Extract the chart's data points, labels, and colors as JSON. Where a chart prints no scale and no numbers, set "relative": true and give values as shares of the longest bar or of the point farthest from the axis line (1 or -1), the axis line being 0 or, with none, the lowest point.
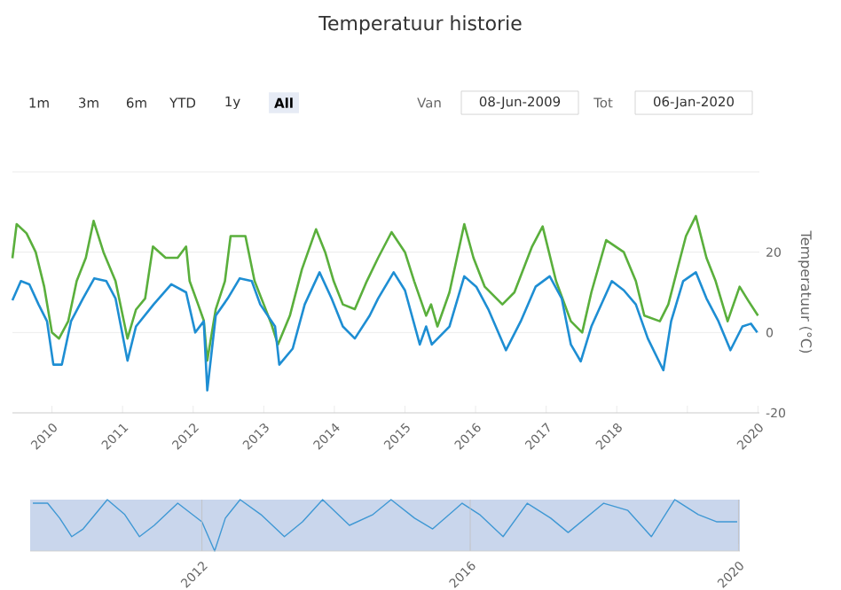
{
  "chart_data": [
    {
      "type": "line",
      "title": "Temperatuur historie",
      "ylabel": "Temperatuur (°C)",
      "grid": "y",
      "marker": "none",
      "annotations": [
        "1m",
        "3m",
        "6m",
        "YTD",
        "1y",
        "All",
        "Van",
        "08-Jun-2009",
        "Tot",
        "06-Jan-2020"
      ],
      "xlim": [
        2009.44,
        2020.02
      ],
      "ylim": [
        -20,
        40
      ],
      "xticks": [
        2010,
        2011,
        2012,
        2013,
        2014,
        2015,
        2016,
        2017,
        2018,
        {
          "value": 2019,
          "label": null
        },
        2020
      ],
      "yticks": [
        -20,
        0,
        20,
        {
          "value": 40,
          "label": null
        }
      ],
      "series": [
        {
          "color": "#5aaf3c",
          "x": [
            2009.44,
            2009.5,
            2009.64,
            2009.77,
            2009.89,
            2010.0,
            2010.1,
            2010.23,
            2010.35,
            2010.48,
            2010.59,
            2010.73,
            2010.9,
            2011.07,
            2011.19,
            2011.32,
            2011.43,
            2011.61,
            2011.78,
            2011.9,
            2011.95,
            2012.07,
            2012.15,
            2012.2,
            2012.32,
            2012.45,
            2012.53,
            2012.74,
            2012.87,
            2013.0,
            2013.11,
            2013.2,
            2013.37,
            2013.54,
            2013.74,
            2013.87,
            2013.99,
            2014.12,
            2014.29,
            2014.46,
            2014.62,
            2014.81,
            2015.0,
            2015.13,
            2015.3,
            2015.37,
            2015.46,
            2015.63,
            2015.84,
            2015.97,
            2016.13,
            2016.38,
            2016.55,
            2016.8,
            2016.95,
            2017.14,
            2017.35,
            2017.51,
            2017.64,
            2017.85,
            2018.1,
            2018.27,
            2018.39,
            2018.61,
            2018.73,
            2018.9,
            2018.98,
            2019.12,
            2019.27,
            2019.4,
            2019.57,
            2019.74,
            2019.86,
            2020.0
          ],
          "values": [
            18.5,
            27,
            24.7,
            20,
            11.4,
            0,
            -1.5,
            2.8,
            12.8,
            18.6,
            27.8,
            20,
            12.8,
            -1.5,
            5.7,
            8.5,
            21.4,
            18.6,
            18.6,
            21.4,
            12.8,
            7,
            3,
            -7,
            5.8,
            12.8,
            24,
            24,
            12.8,
            7,
            2,
            -3,
            4.2,
            15.7,
            25.7,
            20,
            12.8,
            7,
            5.8,
            12.8,
            18.6,
            25,
            20,
            12.8,
            4.2,
            7,
            1.5,
            10,
            27,
            18.6,
            11.4,
            7,
            10,
            21.4,
            26.4,
            12.8,
            2.8,
            0,
            10,
            23,
            20,
            12.8,
            4.2,
            2.8,
            7,
            18.6,
            24,
            29,
            18.6,
            12.8,
            2.8,
            11.4,
            8,
            4.2
          ]
        },
        {
          "color": "#1e8ed3",
          "x": [
            2009.44,
            2009.56,
            2009.68,
            2009.81,
            2009.93,
            2010.02,
            2010.14,
            2010.27,
            2010.44,
            2010.6,
            2010.77,
            2010.9,
            2011.07,
            2011.19,
            2011.44,
            2011.69,
            2011.9,
            2012.03,
            2012.15,
            2012.2,
            2012.32,
            2012.49,
            2012.66,
            2012.83,
            2012.95,
            2013.16,
            2013.22,
            2013.41,
            2013.58,
            2013.79,
            2013.96,
            2014.12,
            2014.29,
            2014.5,
            2014.62,
            2014.84,
            2015.0,
            2015.21,
            2015.3,
            2015.38,
            2015.63,
            2015.84,
            2016.01,
            2016.18,
            2016.43,
            2016.64,
            2016.85,
            2017.05,
            2017.22,
            2017.35,
            2017.49,
            2017.64,
            2017.93,
            2018.1,
            2018.27,
            2018.44,
            2018.66,
            2018.77,
            2018.94,
            2019.12,
            2019.27,
            2019.44,
            2019.61,
            2019.78,
            2019.9,
            2019.99
          ],
          "values": [
            8,
            12.8,
            12,
            7,
            2.8,
            -8,
            -8,
            2.8,
            8.5,
            13.5,
            12.8,
            8.5,
            -7,
            1.5,
            7,
            12,
            10,
            0,
            2.8,
            -14.4,
            4.2,
            8.5,
            13.5,
            12.8,
            7,
            1.5,
            -8,
            -4,
            7,
            15,
            8.5,
            1.5,
            -1.5,
            4.2,
            8.5,
            15,
            10.5,
            -3,
            1.5,
            -3,
            1.5,
            14,
            11.4,
            5.8,
            -4.4,
            2.8,
            11.4,
            14,
            8.5,
            -3,
            -7.2,
            1.5,
            12.8,
            10.5,
            7,
            -1.5,
            -9.4,
            2.8,
            12.8,
            15,
            8.5,
            2.8,
            -4.4,
            1.5,
            2.2,
            0
          ]
        }
      ]
    },
    {
      "type": "line",
      "relative": true,
      "grid": "x",
      "marker": "none",
      "tick_labels": "x",
      "xlim": [
        2009.44,
        2020.02
      ],
      "xticks": [
        2012,
        2016,
        2020
      ],
      "bands": [
        {
          "axis": "x",
          "from": 2009.44,
          "to": 2020.02,
          "color": "#c9d6ec"
        }
      ],
      "series": [
        {
          "color": "#3f98d4",
          "x": [
            2009.48,
            2009.7,
            2009.88,
            2010.06,
            2010.23,
            2010.59,
            2010.85,
            2011.07,
            2011.29,
            2011.64,
            2012.0,
            2012.19,
            2012.35,
            2012.57,
            2012.88,
            2013.23,
            2013.5,
            2013.8,
            2014.2,
            2014.55,
            2014.82,
            2015.17,
            2015.44,
            2015.88,
            2016.14,
            2016.49,
            2016.85,
            2017.2,
            2017.46,
            2017.99,
            2018.35,
            2018.7,
            2019.05,
            2019.4,
            2019.67,
            2019.98
          ],
          "values": [
            0.93,
            0.93,
            0.64,
            0.28,
            0.43,
            1.0,
            0.71,
            0.28,
            0.5,
            0.93,
            0.57,
            0,
            0.64,
            1.0,
            0.71,
            0.28,
            0.57,
            1.0,
            0.5,
            0.71,
            1.0,
            0.64,
            0.43,
            0.93,
            0.71,
            0.28,
            0.93,
            0.64,
            0.36,
            0.93,
            0.79,
            0.28,
            1.0,
            0.71,
            0.57,
            0.57
          ]
        }
      ]
    }
  ]
}
